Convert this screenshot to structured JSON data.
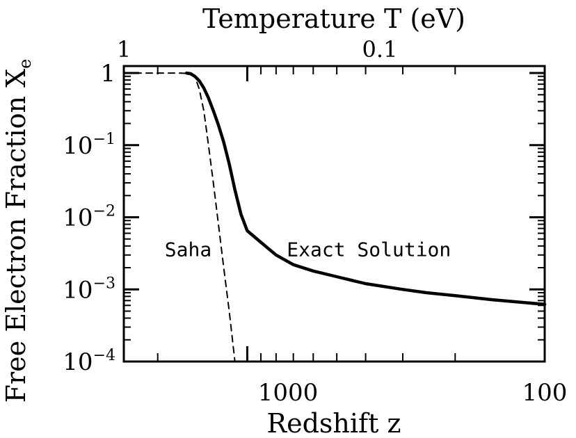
{
  "chart_data": {
    "type": "line",
    "top_axis_label": "Temperature T (eV)",
    "top_axis_ticks": [
      {
        "label": "1",
        "value": 1
      },
      {
        "label": "0.1",
        "value": 0.1
      }
    ],
    "xlabel": "Redshift z",
    "ylabel": "Free Electron Fraction X",
    "ylabel_subscript": "e",
    "x_scale": "log-reversed",
    "xlim": [
      2600,
      100
    ],
    "y_scale": "log",
    "ylim": [
      0.0001,
      1.25
    ],
    "x_ticks": [
      {
        "label": "1000",
        "value": 1000
      },
      {
        "label": "100",
        "value": 100
      }
    ],
    "y_ticks": [
      {
        "base": "1",
        "exp": "",
        "value": 1
      },
      {
        "base": "10",
        "exp": "−1",
        "value": 0.1
      },
      {
        "base": "10",
        "exp": "−2",
        "value": 0.01
      },
      {
        "base": "10",
        "exp": "−3",
        "value": 0.001
      },
      {
        "base": "10",
        "exp": "−4",
        "value": 0.0001
      }
    ],
    "series": [
      {
        "style": "solid",
        "points": [
          [
            1600,
            1.0
          ],
          [
            1550,
            0.98
          ],
          [
            1500,
            0.9
          ],
          [
            1450,
            0.78
          ],
          [
            1400,
            0.62
          ],
          [
            1350,
            0.45
          ],
          [
            1300,
            0.3
          ],
          [
            1250,
            0.19
          ],
          [
            1200,
            0.11
          ],
          [
            1150,
            0.055
          ],
          [
            1100,
            0.024
          ],
          [
            1050,
            0.011
          ],
          [
            1000,
            0.0065
          ],
          [
            900,
            0.0045
          ],
          [
            800,
            0.003
          ],
          [
            700,
            0.0022
          ],
          [
            600,
            0.0018
          ],
          [
            500,
            0.0015
          ],
          [
            400,
            0.0012
          ],
          [
            300,
            0.001
          ],
          [
            250,
            0.0009
          ],
          [
            200,
            0.00082
          ],
          [
            150,
            0.00072
          ],
          [
            100,
            0.00062
          ]
        ]
      },
      {
        "style": "dashed",
        "points": [
          [
            2600,
            1.0
          ],
          [
            1700,
            1.0
          ],
          [
            1600,
            0.99
          ],
          [
            1500,
            0.9
          ],
          [
            1450,
            0.6
          ],
          [
            1400,
            0.3
          ],
          [
            1350,
            0.1
          ],
          [
            1300,
            0.03
          ],
          [
            1250,
            0.008
          ],
          [
            1200,
            0.002
          ],
          [
            1150,
            0.0005
          ],
          [
            1100,
            0.0001
          ]
        ]
      }
    ],
    "annotations": [
      {
        "text": "Saha",
        "x": 1580,
        "y": 0.0036
      },
      {
        "text": "Exact Solution",
        "x": 390,
        "y": 0.0036
      }
    ]
  }
}
